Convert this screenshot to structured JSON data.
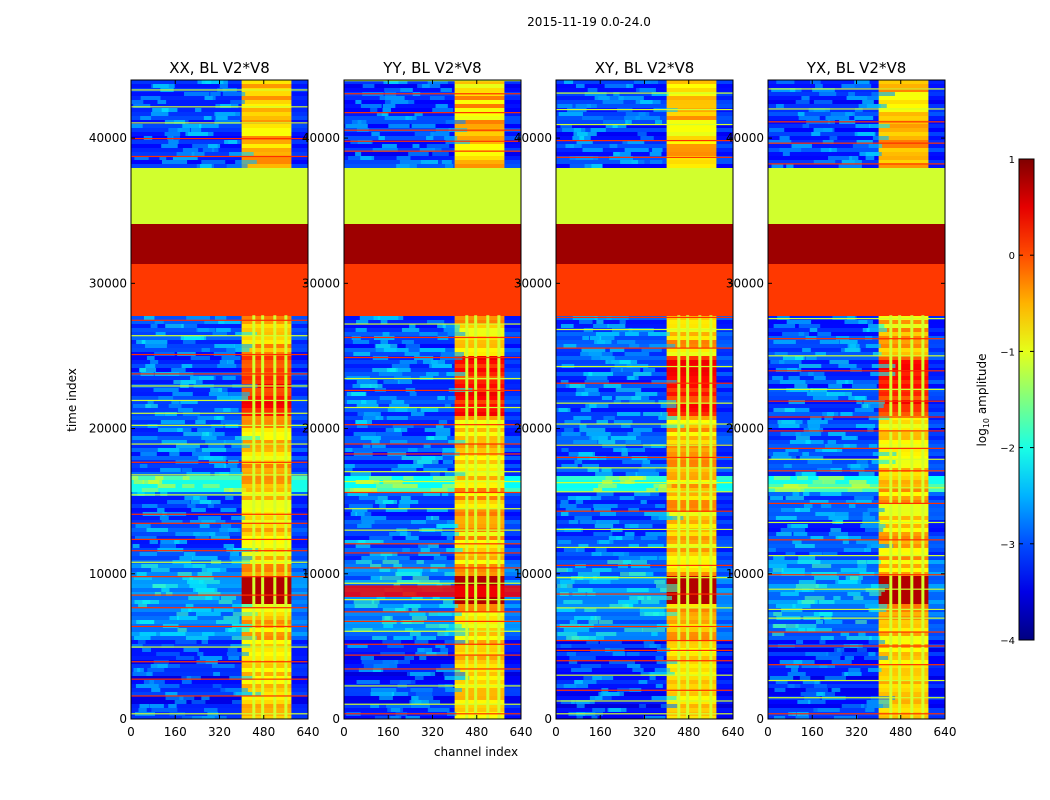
{
  "chart_data": {
    "type": "heatmap",
    "suptitle": "2015-11-19 0.0-24.0",
    "xlabel": "channel index",
    "ylabel": "time index",
    "xlim": [
      0,
      640
    ],
    "ylim": [
      0,
      44000
    ],
    "x_ticks": [
      0,
      160,
      320,
      480,
      640
    ],
    "y_ticks": [
      0,
      10000,
      20000,
      30000,
      40000
    ],
    "colorbar": {
      "label": "log10 amplitude",
      "label_main": "log",
      "label_sub": "10",
      "label_rest": " amplitude",
      "min": -4,
      "max": 1,
      "ticks": [
        1,
        0,
        -1,
        -2,
        -3,
        -4
      ],
      "tick_labels": [
        "1",
        "0",
        "−1",
        "−2",
        "−3",
        "−4"
      ],
      "colormap": "jet"
    },
    "panels": [
      {
        "title": "XX, BL V2*V8",
        "pol": "XX"
      },
      {
        "title": "YY, BL V2*V8",
        "pol": "YY"
      },
      {
        "title": "XY, BL V2*V8",
        "pol": "XY"
      },
      {
        "title": "YX, BL V2*V8",
        "pol": "YX"
      }
    ],
    "time_bands": [
      {
        "t0": 0,
        "t1": 5500,
        "level": -3.3,
        "note": "low-amplitude background with flagged rows"
      },
      {
        "t0": 5500,
        "t1": 11000,
        "level": -2.8,
        "note": "background"
      },
      {
        "t0": 8000,
        "t1": 10000,
        "level": 0.3,
        "note": "high-amplitude burst in channels 384-576"
      },
      {
        "t0": 11000,
        "t1": 27800,
        "level": -3.1,
        "note": "background"
      },
      {
        "t0": 15800,
        "t1": 16800,
        "level": -1.9,
        "note": "cyan band"
      },
      {
        "t0": 21000,
        "t1": 25000,
        "level": 0.0,
        "note": "elevated band in channels 384-576"
      },
      {
        "t0": 27800,
        "t1": 31500,
        "level": 0.1,
        "note": "flagged orange block"
      },
      {
        "t0": 31500,
        "t1": 34300,
        "level": 0.85,
        "note": "flagged dark-red block"
      },
      {
        "t0": 34300,
        "t1": 38200,
        "level": -1.1,
        "note": "flagged green block"
      },
      {
        "t0": 38200,
        "t1": 44000,
        "level": -3.2,
        "note": "background"
      }
    ],
    "rfi_channels": [
      [
        400,
        580
      ]
    ],
    "flag_channel_lines": [
      444,
      476,
      520,
      560
    ]
  }
}
